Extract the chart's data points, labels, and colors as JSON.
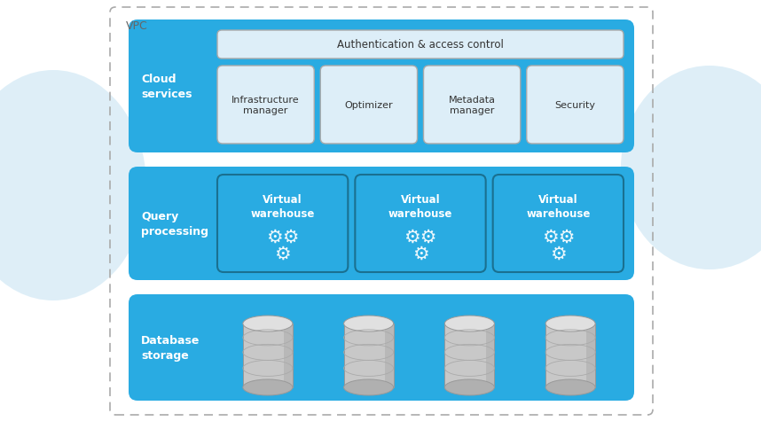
{
  "bg_color": "#ffffff",
  "vpc_border_color": "#aaaaaa",
  "vpc_label": "VPC",
  "cloud_bg": "#29abe2",
  "inner_box_bg": "#ddeef8",
  "white": "#ffffff",
  "dark_text": "#444444",
  "auth_text": "Authentication & access control",
  "cloud_label": "Cloud\nservices",
  "query_label": "Query\nprocessing",
  "db_label": "Database\nstorage",
  "service_boxes": [
    "Infrastructure\nmanager",
    "Optimizer",
    "Metadata\nmanager",
    "Security"
  ],
  "warehouse_label": "Virtual\nwarehouse",
  "num_warehouses": 3,
  "num_db_cylinders": 4,
  "cloud_ellipse_color": "#d0e8f5",
  "wh_border_color": "#1a7090"
}
